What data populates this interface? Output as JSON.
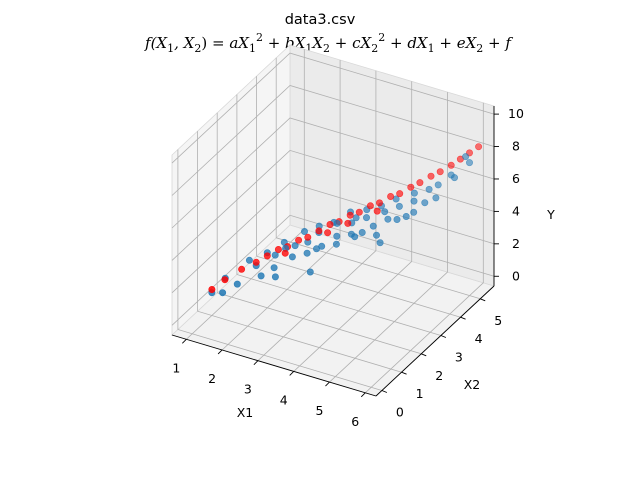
{
  "chart_data": {
    "type": "scatter",
    "projection": "3d",
    "title": "data3.csv",
    "subtitle": "f(X₁, X₂) = aX₁² + bX₁X₂ + cX₂² + dX₁ + eX₂ + f",
    "xlabel": "X1",
    "ylabel": "X2",
    "zlabel": "Y",
    "xlim": [
      0.6,
      6.3
    ],
    "ylim": [
      -0.3,
      5.7
    ],
    "zlim": [
      -0.6,
      10.5
    ],
    "xticks": [
      1,
      2,
      3,
      4,
      5,
      6
    ],
    "yticks": [
      0,
      1,
      2,
      3,
      4,
      5
    ],
    "zticks": [
      0,
      2,
      4,
      6,
      8,
      10
    ],
    "grid": true,
    "colors": {
      "observed": "#1f77b4",
      "fitted": "#ff0000"
    },
    "series": [
      {
        "kind": "observed",
        "points": [
          [
            1.0,
            1.0,
            0.8
          ],
          [
            1.1,
            1.5,
            1.2
          ],
          [
            1.3,
            1.0,
            1.0
          ],
          [
            1.5,
            2.0,
            2.0
          ],
          [
            1.6,
            1.2,
            1.5
          ],
          [
            1.8,
            1.8,
            2.1
          ],
          [
            2.0,
            2.0,
            2.8
          ],
          [
            2.1,
            1.5,
            2.0
          ],
          [
            2.2,
            2.5,
            3.0
          ],
          [
            2.3,
            1.8,
            2.3
          ],
          [
            2.4,
            2.2,
            3.1
          ],
          [
            2.5,
            2.5,
            3.0
          ],
          [
            2.5,
            1.5,
            2.2
          ],
          [
            2.6,
            2.8,
            3.6
          ],
          [
            2.7,
            2.0,
            3.0
          ],
          [
            2.8,
            2.6,
            3.3
          ],
          [
            2.9,
            3.0,
            3.9
          ],
          [
            3.0,
            2.2,
            3.2
          ],
          [
            3.0,
            2.8,
            3.8
          ],
          [
            3.1,
            2.5,
            3.2
          ],
          [
            3.2,
            3.2,
            4.1
          ],
          [
            3.3,
            2.4,
            3.6
          ],
          [
            3.4,
            3.0,
            4.4
          ],
          [
            3.5,
            2.8,
            3.9
          ],
          [
            3.5,
            3.5,
            4.6
          ],
          [
            3.6,
            2.6,
            3.7
          ],
          [
            3.7,
            3.2,
            4.4
          ],
          [
            3.8,
            3.0,
            4.0
          ],
          [
            3.9,
            3.6,
            4.9
          ],
          [
            4.0,
            2.8,
            4.2
          ],
          [
            4.0,
            3.4,
            4.7
          ],
          [
            4.1,
            3.0,
            4.3
          ],
          [
            4.2,
            3.8,
            5.1
          ],
          [
            4.3,
            3.2,
            4.6
          ],
          [
            4.4,
            3.6,
            5.1
          ],
          [
            4.5,
            3.0,
            4.4
          ],
          [
            4.5,
            4.0,
            5.5
          ],
          [
            4.6,
            3.4,
            5.0
          ],
          [
            4.7,
            3.8,
            5.4
          ],
          [
            4.8,
            3.5,
            5.0
          ],
          [
            4.9,
            4.2,
            5.9
          ],
          [
            5.0,
            3.6,
            5.2
          ],
          [
            5.0,
            4.0,
            5.7
          ],
          [
            5.1,
            3.8,
            5.3
          ],
          [
            5.2,
            4.4,
            6.1
          ],
          [
            5.3,
            4.0,
            5.8
          ],
          [
            5.4,
            4.5,
            6.4
          ],
          [
            5.5,
            4.2,
            6.0
          ],
          [
            5.6,
            4.8,
            6.8
          ],
          [
            5.8,
            4.6,
            7.0
          ],
          [
            6.0,
            5.0,
            7.6
          ],
          [
            6.0,
            4.8,
            8.2
          ],
          [
            3.2,
            2.0,
            2.4
          ],
          [
            2.0,
            2.4,
            2.2
          ],
          [
            4.6,
            3.0,
            4.0
          ],
          [
            3.6,
            3.6,
            4.2
          ]
        ]
      },
      {
        "kind": "fitted",
        "points": [
          [
            1.0,
            1.0,
            1.0
          ],
          [
            1.2,
            1.3,
            1.4
          ],
          [
            1.5,
            1.6,
            1.9
          ],
          [
            1.8,
            1.8,
            2.3
          ],
          [
            2.0,
            2.0,
            2.6
          ],
          [
            2.2,
            2.2,
            2.9
          ],
          [
            2.4,
            2.3,
            3.1
          ],
          [
            2.6,
            2.5,
            3.4
          ],
          [
            2.8,
            2.6,
            3.6
          ],
          [
            3.0,
            2.8,
            3.9
          ],
          [
            3.2,
            3.0,
            4.2
          ],
          [
            3.4,
            3.1,
            4.4
          ],
          [
            3.6,
            3.3,
            4.7
          ],
          [
            3.8,
            3.4,
            4.9
          ],
          [
            4.0,
            3.6,
            5.2
          ],
          [
            4.2,
            3.7,
            5.4
          ],
          [
            4.4,
            3.9,
            5.7
          ],
          [
            4.6,
            4.0,
            5.9
          ],
          [
            4.8,
            4.2,
            6.2
          ],
          [
            5.0,
            4.3,
            6.5
          ],
          [
            5.2,
            4.5,
            6.8
          ],
          [
            5.4,
            4.6,
            7.1
          ],
          [
            5.6,
            4.8,
            7.4
          ],
          [
            5.8,
            4.9,
            7.8
          ],
          [
            6.0,
            5.0,
            8.2
          ],
          [
            6.2,
            5.1,
            8.6
          ],
          [
            2.5,
            2.0,
            3.1
          ],
          [
            3.3,
            2.7,
            4.1
          ],
          [
            4.3,
            3.4,
            5.3
          ],
          [
            3.7,
            3.0,
            4.6
          ]
        ]
      }
    ]
  }
}
